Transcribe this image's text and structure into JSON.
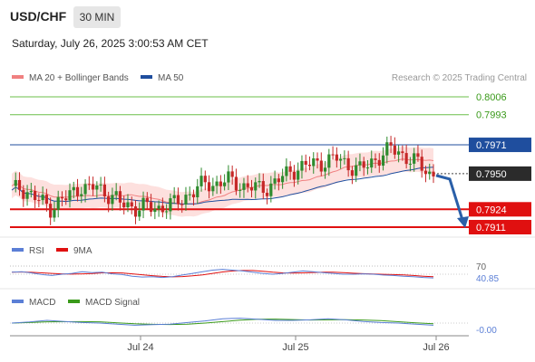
{
  "header": {
    "pair": "USD/CHF",
    "timeframe": "30 MIN",
    "timestamp": "Saturday, July 26, 2025 3:00:53 AM CET"
  },
  "legend": [
    {
      "label": "MA 20 + Bollinger Bands",
      "color": "#f08080"
    },
    {
      "label": "MA 50",
      "color": "#1f4e9e"
    }
  ],
  "credit": "Research © 2025 Trading Central",
  "colors": {
    "up": "#2e8b2e",
    "down": "#c62828",
    "target": "#6bbf4a",
    "pivot": "#1f4e9e",
    "support": "#e01010",
    "arrow": "#2a5fa8",
    "band": "#fde0de"
  },
  "chart_data": [
    {
      "type": "candlestick",
      "title": "",
      "price_levels": [
        {
          "value": 0.8006,
          "label": "0.8006",
          "kind": "resistance"
        },
        {
          "value": 0.7993,
          "label": "0.7993",
          "kind": "resistance"
        },
        {
          "value": 0.7971,
          "label": "0.7971",
          "kind": "pivot"
        },
        {
          "value": 0.795,
          "label": "0.7950",
          "kind": "last"
        },
        {
          "value": 0.7924,
          "label": "0.7924",
          "kind": "support"
        },
        {
          "value": 0.7911,
          "label": "0.7911",
          "kind": "support"
        }
      ],
      "ylim": [
        0.791,
        0.8015
      ],
      "x_ticks": [
        "Jul 24",
        "Jul 25",
        "Jul 26"
      ],
      "series": [
        {
          "name": "MA 20 + Bollinger Bands"
        },
        {
          "name": "MA 50"
        }
      ],
      "close": [
        0.7938,
        0.794,
        0.7937,
        0.7932,
        0.7929,
        0.7925,
        0.7929,
        0.7932,
        0.7937,
        0.7941,
        0.7938,
        0.7941,
        0.7936,
        0.7934,
        0.7928,
        0.7927,
        0.7925,
        0.7926,
        0.7925,
        0.7925,
        0.7927,
        0.7928,
        0.7931,
        0.7936,
        0.7939,
        0.7943,
        0.7942,
        0.7944,
        0.7945,
        0.7943,
        0.7941,
        0.794,
        0.7939,
        0.794,
        0.7944,
        0.7947,
        0.7952,
        0.7954,
        0.7956,
        0.7957,
        0.7958,
        0.796,
        0.7961,
        0.7958,
        0.7955,
        0.7953,
        0.7956,
        0.7961,
        0.7964,
        0.7968,
        0.7966,
        0.7962,
        0.7959,
        0.7955,
        0.795
      ],
      "forecast": "down to 0.7911"
    },
    {
      "type": "line",
      "title": "",
      "series": [
        {
          "name": "RSI"
        },
        {
          "name": "9MA"
        }
      ],
      "y_ticks": [
        70
      ],
      "last_value_label": "40.85",
      "values": [
        55,
        56,
        53,
        49,
        47,
        50,
        52,
        56,
        54,
        55,
        51,
        49,
        45,
        43,
        44,
        42,
        44,
        48,
        52,
        56,
        60,
        62,
        60,
        58,
        55,
        52,
        50,
        52,
        55,
        58,
        56,
        54,
        52,
        50,
        50,
        51,
        50,
        48,
        47,
        45,
        44,
        42,
        41
      ]
    },
    {
      "type": "line",
      "title": "",
      "series": [
        {
          "name": "MACD"
        },
        {
          "name": "MACD Signal"
        }
      ],
      "y_ticks": [
        0
      ],
      "last_value_label": "-0.00",
      "values": [
        0.0,
        0.2,
        0.5,
        0.3,
        0.1,
        0.0,
        -0.2,
        -0.4,
        -0.3,
        -0.2,
        0.1,
        0.4,
        0.8,
        0.9,
        0.7,
        0.5,
        0.5,
        0.6,
        0.8,
        0.6,
        0.3,
        0.1,
        0.0,
        -0.2,
        -0.4
      ]
    }
  ]
}
